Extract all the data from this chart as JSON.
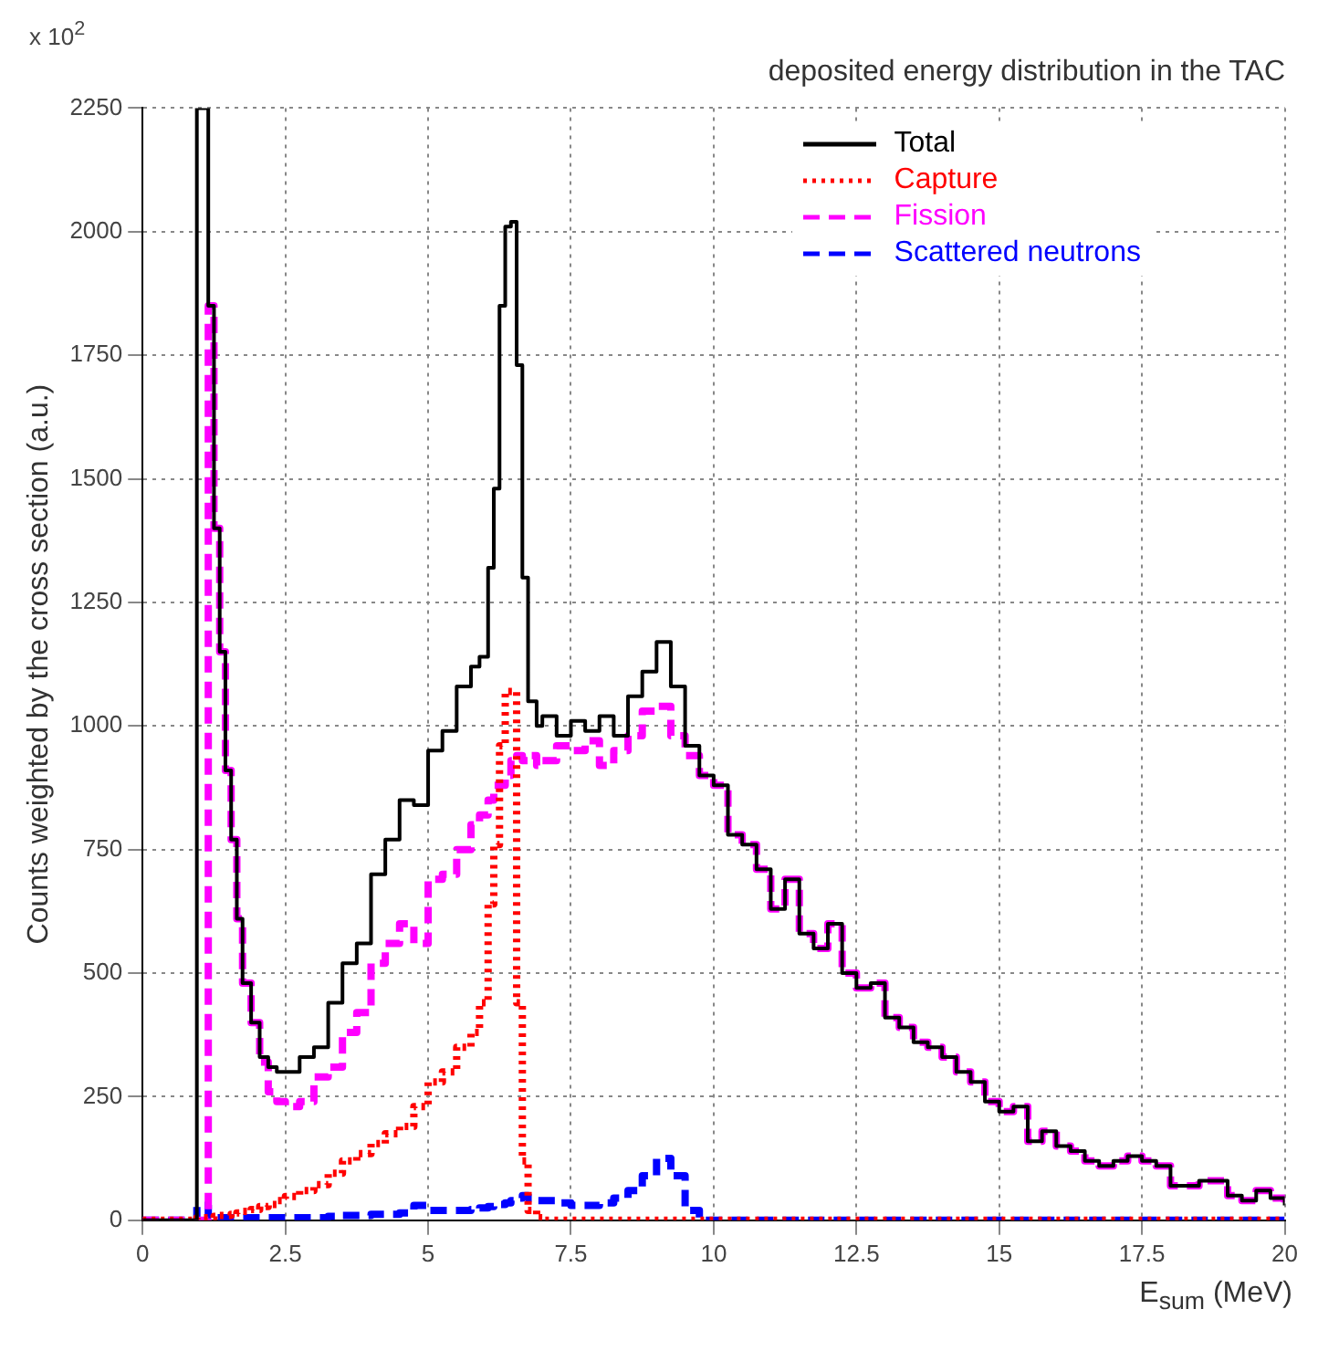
{
  "chart_data": {
    "type": "step",
    "title": "deposited energy distribution in the TAC",
    "xlabel": "E$_{sum}$ (MeV)",
    "ylabel": "Counts weighted by the cross section (a.u.)",
    "annotations": [
      "x 10$^{2}$"
    ],
    "x": [
      0,
      0.95,
      1.15,
      1.25,
      1.35,
      1.45,
      1.55,
      1.65,
      1.75,
      1.9,
      2.05,
      2.2,
      2.35,
      2.5,
      2.75,
      3.0,
      3.25,
      3.5,
      3.75,
      4.0,
      4.25,
      4.5,
      4.75,
      5.0,
      5.25,
      5.5,
      5.75,
      5.9,
      6.05,
      6.15,
      6.25,
      6.35,
      6.45,
      6.55,
      6.65,
      6.75,
      6.9,
      7.0,
      7.25,
      7.5,
      7.75,
      8.0,
      8.25,
      8.5,
      8.75,
      9.0,
      9.25,
      9.5,
      9.75,
      10.0,
      10.25,
      10.5,
      10.75,
      11.0,
      11.25,
      11.5,
      11.75,
      12.0,
      12.25,
      12.5,
      12.75,
      13.0,
      13.25,
      13.5,
      13.75,
      14.0,
      14.25,
      14.5,
      14.75,
      15.0,
      15.25,
      15.5,
      15.75,
      16.0,
      16.25,
      16.5,
      16.75,
      17.0,
      17.25,
      17.5,
      17.75,
      18.0,
      18.25,
      18.5,
      18.75,
      19.0,
      19.25,
      19.5,
      19.75,
      20
    ],
    "series": [
      {
        "name": "Total",
        "color": "#000000",
        "line_style": "solid",
        "values": [
          0,
          2250,
          1850,
          1400,
          1150,
          910,
          770,
          610,
          480,
          400,
          330,
          310,
          300,
          300,
          330,
          350,
          440,
          520,
          560,
          700,
          770,
          850,
          840,
          950,
          990,
          1080,
          1120,
          1140,
          1320,
          1480,
          1850,
          2010,
          2020,
          1730,
          1300,
          1050,
          1000,
          1020,
          980,
          1010,
          990,
          1020,
          980,
          1060,
          1110,
          1170,
          1080,
          960,
          900,
          880,
          780,
          760,
          710,
          630,
          690,
          580,
          550,
          600,
          500,
          470,
          480,
          410,
          390,
          360,
          350,
          330,
          300,
          280,
          240,
          220,
          230,
          160,
          180,
          150,
          140,
          120,
          110,
          120,
          130,
          120,
          110,
          70,
          70,
          80,
          80,
          50,
          40,
          60,
          45,
          30
        ]
      },
      {
        "name": "Capture",
        "color": "#ff0000",
        "line_style": "dotted",
        "values": [
          0,
          5,
          5,
          8,
          10,
          10,
          12,
          15,
          18,
          22,
          28,
          32,
          40,
          48,
          60,
          72,
          95,
          120,
          135,
          155,
          175,
          190,
          230,
          280,
          300,
          350,
          380,
          440,
          640,
          760,
          960,
          1070,
          1070,
          440,
          120,
          20,
          5,
          0,
          0,
          0,
          0,
          0,
          0,
          0,
          0,
          0,
          0,
          0,
          0,
          0,
          0,
          0,
          0,
          0,
          0,
          0,
          0,
          0,
          0,
          0,
          0,
          0,
          0,
          0,
          0,
          0,
          0,
          0,
          0,
          0,
          0,
          0,
          0,
          0,
          0,
          0,
          0,
          0,
          0,
          0,
          0,
          0,
          0,
          0,
          0,
          0,
          0,
          0,
          0,
          0
        ]
      },
      {
        "name": "Fission",
        "color": "#ff00ff",
        "line_style": "dashed",
        "values": [
          0,
          0,
          1850,
          1400,
          1150,
          910,
          770,
          610,
          480,
          400,
          320,
          260,
          240,
          230,
          240,
          290,
          310,
          380,
          420,
          520,
          560,
          600,
          560,
          690,
          700,
          750,
          800,
          820,
          850,
          880,
          880,
          900,
          930,
          940,
          930,
          940,
          920,
          930,
          960,
          950,
          970,
          920,
          950,
          980,
          1030,
          1040,
          980,
          940,
          900,
          880,
          780,
          760,
          710,
          630,
          690,
          580,
          550,
          600,
          500,
          470,
          480,
          410,
          390,
          360,
          350,
          330,
          300,
          280,
          240,
          220,
          230,
          160,
          180,
          150,
          140,
          120,
          110,
          120,
          130,
          120,
          110,
          70,
          70,
          80,
          80,
          50,
          40,
          60,
          45,
          30
        ]
      },
      {
        "name": "Scattered neutrons",
        "color": "#0000ff",
        "line_style": "dashed",
        "values": [
          0,
          30,
          10,
          5,
          5,
          5,
          5,
          5,
          5,
          5,
          5,
          5,
          5,
          5,
          5,
          5,
          8,
          10,
          10,
          12,
          12,
          15,
          30,
          20,
          20,
          20,
          22,
          25,
          28,
          30,
          32,
          35,
          40,
          45,
          50,
          45,
          40,
          40,
          35,
          30,
          30,
          35,
          45,
          60,
          90,
          125,
          90,
          20,
          0,
          0,
          0,
          0,
          0,
          0,
          0,
          0,
          0,
          0,
          0,
          0,
          0,
          0,
          0,
          0,
          0,
          0,
          0,
          0,
          0,
          0,
          0,
          0,
          0,
          0,
          0,
          0,
          0,
          0,
          0,
          0,
          0,
          0,
          0,
          0,
          0,
          0,
          0,
          0,
          0,
          0
        ]
      }
    ],
    "xlim": [
      0,
      20
    ],
    "xticks": [
      0,
      2.5,
      5,
      7.5,
      10,
      12.5,
      15,
      17.5,
      20
    ],
    "ylim": [
      0,
      2250
    ],
    "yticks": [
      0,
      250,
      500,
      750,
      1000,
      1250,
      1500,
      1750,
      2000,
      2250
    ],
    "grid": true,
    "legend": "top right"
  }
}
